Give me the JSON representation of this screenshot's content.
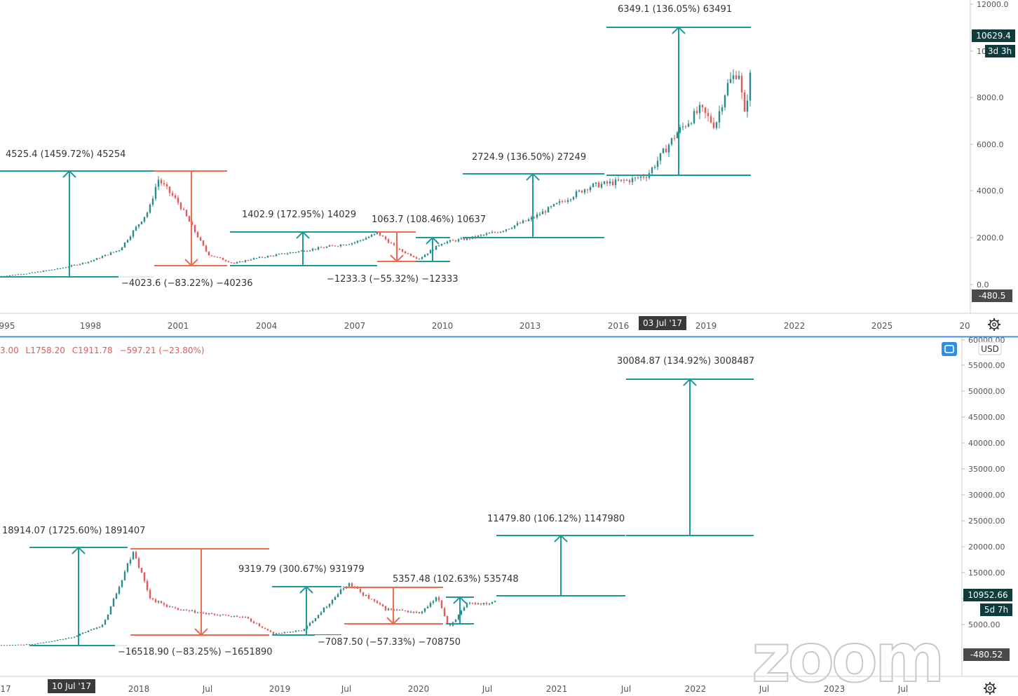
{
  "top_panel": {
    "y_axis_ticks": [
      "12000.0",
      "10000.0",
      "8000.0",
      "6000.0",
      "4000.0",
      "2000.0",
      "0.0"
    ],
    "current_price_badge": "10629.4",
    "countdown_badge": "3d 3h",
    "low_badge": "-480.5",
    "x_axis_ticks": [
      "995",
      "1998",
      "2001",
      "2004",
      "2007",
      "2010",
      "2013",
      "2016",
      "2019",
      "2022",
      "2025",
      "20"
    ],
    "crosshair_time_badge": "03 Jul '17",
    "measurements": [
      "4525.4 (1459.72%) 45254",
      "−4023.6 (−83.22%) −40236",
      "1402.9 (172.95%) 14029",
      "1063.7 (108.46%) 10637",
      "−1233.3 (−55.32%) −12333",
      "2724.9 (136.50%) 27249",
      "6349.1 (136.05%) 63491"
    ]
  },
  "bottom_panel": {
    "ohlc_legend": {
      "open": "3.00",
      "low": "L1758.20",
      "close": "C1911.78",
      "change": "−597.21 (−23.80%)"
    },
    "currency_label": "USD",
    "y_axis_ticks": [
      "60000.00",
      "55000.00",
      "50000.00",
      "45000.00",
      "40000.00",
      "35000.00",
      "30000.00",
      "25000.00",
      "20000.00",
      "15000.00",
      "10000.00",
      "5000.00"
    ],
    "current_price_badge": "10952.66",
    "countdown_badge": "5d 7h",
    "low_badge": "-480.52",
    "x_axis_ticks": [
      "17",
      "2018",
      "Jul",
      "2019",
      "Jul",
      "2020",
      "Jul",
      "2021",
      "Jul",
      "2022",
      "Jul",
      "2023",
      "Jul"
    ],
    "crosshair_time_badge": "10 Jul '17",
    "measurements": [
      "18914.07 (1725.60%) 1891407",
      "−16518.90 (−83.25%) −1651890",
      "9319.79 (300.67%) 931979",
      "5357.48 (102.63%) 535748",
      "−7087.50 (−57.33%) −708750",
      "11479.80 (106.12%) 1147980",
      "30084.87 (134.92%) 3008487"
    ]
  },
  "watermark": "zoom",
  "colors": {
    "up_measure": "#1e9a9a",
    "down_measure": "#f06a50",
    "candle_up": "#2b8a8a",
    "candle_down": "#e35a5a",
    "badge_dark": "#0f3d3d",
    "badge_gray": "#4a4a4a",
    "panel_border": "#4a90e2"
  },
  "chart_data": [
    {
      "type": "line",
      "title": "",
      "ylim": [
        -480.5,
        12000
      ],
      "y_scale": "linear",
      "grid": false,
      "x": [
        1994.5,
        1996,
        1997,
        1998,
        1999,
        2000,
        2000.3,
        2001,
        2002,
        2002.9,
        2003.5,
        2005,
        2006,
        2007,
        2007.8,
        2008.5,
        2009.2,
        2010,
        2011,
        2012,
        2013,
        2014,
        2015,
        2016.5,
        2017,
        2018,
        2018.8,
        2019.3,
        2019.7,
        2020.1,
        2020.3,
        2020.6,
        2020.8
      ],
      "series": [
        {
          "values": [
            300,
            500,
            700,
            1000,
            1500,
            3200,
            4525,
            3500,
            1300,
            900,
            1100,
            1400,
            1600,
            1800,
            2200,
            1500,
            1100,
            1800,
            2000,
            2300,
            2800,
            3500,
            4200,
            4500,
            4700,
            6500,
            7500,
            6800,
            8500,
            9200,
            7200,
            9800,
            10629
          ]
        }
      ]
    },
    {
      "type": "line",
      "title": "",
      "ylim": [
        0,
        60000
      ],
      "y_scale": "linear",
      "grid": false,
      "x": [
        "2017-01-01",
        "2017-04-01",
        "2017-07-10",
        "2017-10-01",
        "2017-12-17",
        "2018-02-01",
        "2018-04-01",
        "2018-07-01",
        "2018-10-01",
        "2018-12-15",
        "2019-03-01",
        "2019-06-26",
        "2019-08-01",
        "2019-10-01",
        "2020-01-01",
        "2020-02-15",
        "2020-03-13",
        "2020-05-01",
        "2020-07-01",
        "2020-07-28"
      ],
      "series": [
        {
          "values": [
            1000,
            1200,
            2500,
            5000,
            19400,
            10000,
            8000,
            7000,
            6400,
            3200,
            3900,
            13000,
            11000,
            8000,
            7200,
            10300,
            4500,
            9000,
            9200,
            10952
          ]
        }
      ]
    }
  ]
}
